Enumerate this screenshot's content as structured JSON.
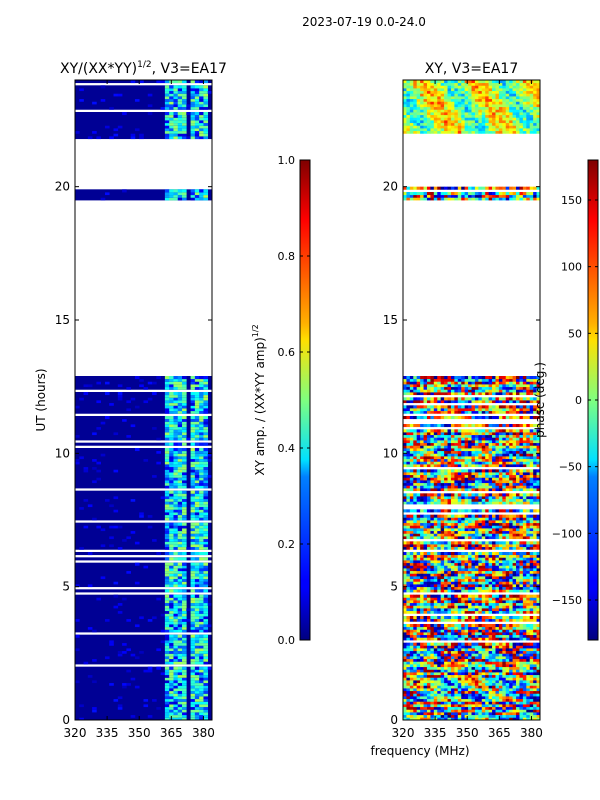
{
  "figure": {
    "suptitle": "2023-07-19 0.0-24.0",
    "shared_xlabel": "frequency (MHz)"
  },
  "chart_data": [
    {
      "type": "heatmap",
      "title": "XY/(XX*YY)",
      "title_superscript": "1/2",
      "title_suffix": ", V3=EA17",
      "xlabel": "",
      "ylabel": "UT (hours)",
      "xlim": [
        320,
        384
      ],
      "ylim": [
        0,
        24
      ],
      "xticks": [
        320,
        335,
        350,
        365,
        380
      ],
      "yticks": [
        0,
        5,
        10,
        15,
        20
      ],
      "colormap": "jet",
      "colorbar": {
        "label": "XY amp. / (XX*YY amp)",
        "label_superscript": "1/2",
        "range": [
          0.0,
          1.0
        ],
        "ticks": [
          "0.0",
          "0.2",
          "0.4",
          "0.6",
          "0.8",
          "1.0"
        ]
      },
      "data_blocks": [
        [
          0.0,
          12.9
        ],
        [
          19.5,
          20.0
        ],
        [
          21.8,
          24.0
        ]
      ],
      "dominant_value": 0.0,
      "elevated_bands_mhz": [
        [
          363,
          367
        ],
        [
          368,
          372
        ],
        [
          375,
          377
        ],
        [
          378,
          382
        ]
      ],
      "elevated_value_range": [
        0.25,
        0.55
      ]
    },
    {
      "type": "heatmap",
      "title": "XY, V3=EA17",
      "xlabel": "",
      "ylabel": "",
      "xlim": [
        320,
        384
      ],
      "ylim": [
        0,
        24
      ],
      "xticks": [
        320,
        335,
        350,
        365,
        380
      ],
      "yticks": [
        0,
        5,
        10,
        15,
        20
      ],
      "colormap": "jet",
      "colorbar": {
        "label": "phase (deg.)",
        "range": [
          -180,
          180
        ],
        "ticks": [
          "150",
          "100",
          "50",
          "0",
          "−50",
          "−100",
          "−150"
        ],
        "tick_values": [
          150,
          100,
          50,
          0,
          -50,
          -100,
          -150
        ]
      },
      "data_blocks": [
        [
          0.0,
          12.9
        ],
        [
          19.5,
          20.0
        ],
        [
          21.8,
          24.0
        ]
      ],
      "value_range": [
        -180,
        180
      ]
    }
  ]
}
